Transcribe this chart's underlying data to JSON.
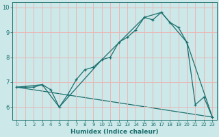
{
  "xlabel": "Humidex (Indice chaleur)",
  "ylabel": "",
  "xlim": [
    -0.5,
    23.5
  ],
  "ylim": [
    5.5,
    10.2
  ],
  "yticks": [
    6,
    7,
    8,
    9,
    10
  ],
  "xticks": [
    0,
    1,
    2,
    3,
    4,
    5,
    6,
    7,
    8,
    9,
    10,
    11,
    12,
    13,
    14,
    15,
    16,
    17,
    18,
    19,
    20,
    21,
    22,
    23
  ],
  "bg_color": "#cce8e8",
  "grid_color": "#e8b8b8",
  "line_color": "#1a6e6e",
  "line1_x": [
    0,
    1,
    2,
    3,
    4,
    5,
    6,
    7,
    8,
    9,
    10,
    11,
    12,
    13,
    14,
    15,
    16,
    17,
    18,
    19,
    20,
    21,
    22,
    23
  ],
  "line1_y": [
    6.8,
    6.8,
    6.8,
    6.9,
    6.7,
    6.0,
    6.5,
    7.1,
    7.5,
    7.6,
    7.9,
    8.0,
    8.6,
    8.8,
    9.1,
    9.6,
    9.5,
    9.8,
    9.4,
    9.2,
    8.6,
    6.1,
    6.4,
    5.6
  ],
  "line2_x": [
    0,
    3,
    5,
    10,
    15,
    17,
    20,
    23
  ],
  "line2_y": [
    6.8,
    6.9,
    6.0,
    7.9,
    9.6,
    9.8,
    8.6,
    5.6
  ],
  "line3_x": [
    0,
    23
  ],
  "line3_y": [
    6.8,
    5.6
  ]
}
